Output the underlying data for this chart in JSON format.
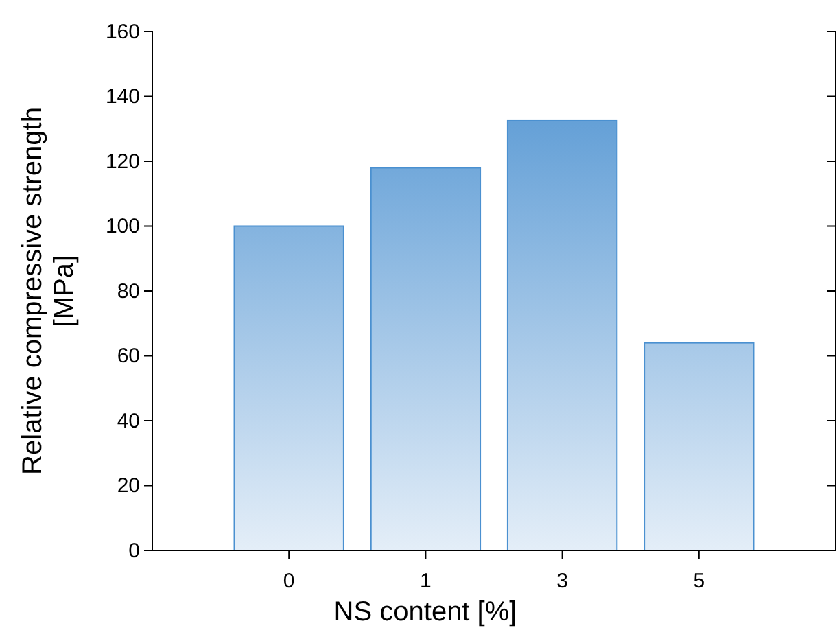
{
  "chart_data": {
    "type": "bar",
    "categories": [
      "0",
      "1",
      "3",
      "5"
    ],
    "values": [
      100,
      118,
      132.5,
      64
    ],
    "color": "#4a90d0",
    "xlabel": "NS content [%]",
    "ylabel": "Relative compressive strength\n[MPa]",
    "ylim": [
      0,
      160
    ],
    "yticks": [
      0,
      20,
      40,
      60,
      80,
      100,
      120,
      140,
      160
    ],
    "grid": false
  }
}
